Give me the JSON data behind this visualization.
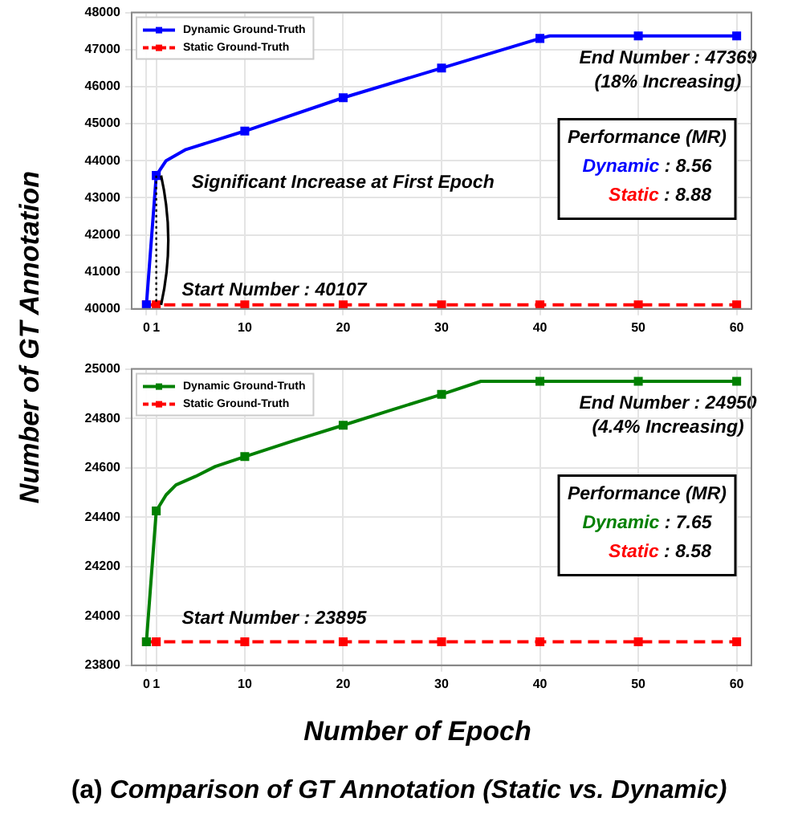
{
  "chart_data": [
    {
      "type": "line",
      "ylabel": "Number of GT Annotation",
      "x": [
        0,
        1,
        2,
        4,
        10,
        20,
        30,
        35,
        40,
        41,
        50,
        60
      ],
      "series": [
        {
          "name": "Dynamic Ground-Truth",
          "color": "#0000ff",
          "values": [
            40107,
            43600,
            44000,
            44300,
            44800,
            45700,
            46500,
            46900,
            47300,
            47369,
            47369,
            47369
          ]
        },
        {
          "name": "Static Ground-Truth",
          "color": "#ff0000",
          "line_style": "dashed",
          "x": [
            0,
            1,
            10,
            20,
            30,
            40,
            50,
            60
          ],
          "values": [
            40107,
            40107,
            40107,
            40107,
            40107,
            40107,
            40107,
            40107
          ]
        }
      ],
      "xlim": [
        -1.5,
        61.5
      ],
      "ylim": [
        40000,
        48000
      ],
      "xticks": [
        0,
        1,
        10,
        20,
        30,
        40,
        50,
        60
      ],
      "yticks": [
        40000,
        41000,
        42000,
        43000,
        44000,
        45000,
        46000,
        47000,
        48000
      ],
      "grid": true,
      "legend": "top left",
      "marker": "square",
      "annotations": [
        {
          "text": "Significant Increase at First Epoch",
          "x": 1,
          "y": 43400
        },
        {
          "text": "Start Number : 40107",
          "x": 0,
          "y": 40500
        },
        {
          "text": "End Number : 47369",
          "x": 60,
          "y": 47369
        },
        "(18% Increasing)",
        "Performance (MR)",
        "Dynamic : 8.56",
        "Static : 8.88"
      ]
    },
    {
      "type": "line",
      "xlabel": "Number of Epoch",
      "title": "(a) Comparison of GT Annotation (Static vs. Dynamic)",
      "x": [
        0,
        1,
        2,
        3,
        5,
        7,
        10,
        15,
        20,
        25,
        30,
        34,
        40,
        50,
        60
      ],
      "series": [
        {
          "name": "Dynamic Ground-Truth",
          "color": "#008000",
          "values": [
            23895,
            24425,
            24490,
            24530,
            24565,
            24605,
            24645,
            24710,
            24772,
            24835,
            24897,
            24950,
            24950,
            24950,
            24950
          ]
        },
        {
          "name": "Static Ground-Truth",
          "color": "#ff0000",
          "line_style": "dashed",
          "x": [
            0,
            1,
            10,
            20,
            30,
            40,
            50,
            60
          ],
          "values": [
            23895,
            23895,
            23895,
            23895,
            23895,
            23895,
            23895,
            23895
          ]
        }
      ],
      "xlim": [
        -1.5,
        61.5
      ],
      "ylim": [
        23800,
        25000
      ],
      "xticks": [
        0,
        1,
        10,
        20,
        30,
        40,
        50,
        60
      ],
      "yticks": [
        23800,
        24000,
        24200,
        24400,
        24600,
        24800,
        25000
      ],
      "grid": true,
      "legend": "top left",
      "marker": "square",
      "annotations": [
        {
          "text": "Start Number : 23895",
          "x": 0,
          "y": 23990
        },
        {
          "text": "End Number : 24950",
          "x": 60,
          "y": 24950
        },
        "(4.4% Increasing)",
        "Performance (MR)",
        "Dynamic : 7.65",
        "Static : 8.58"
      ]
    }
  ]
}
